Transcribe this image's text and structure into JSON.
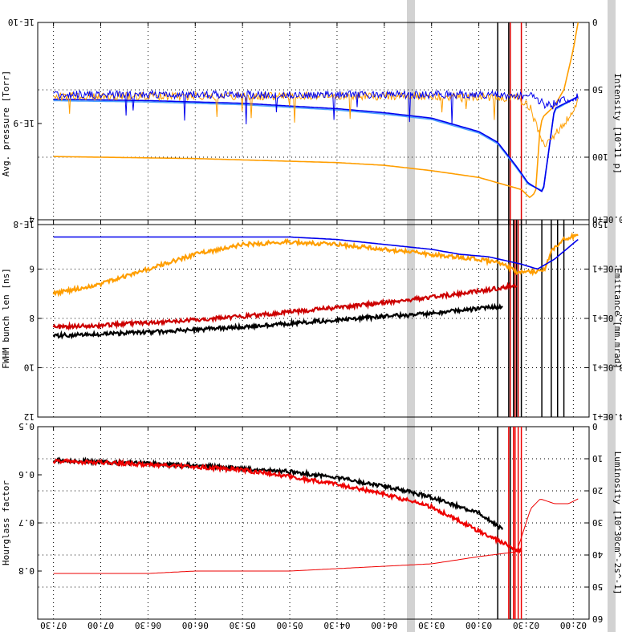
{
  "chart_data": [
    {
      "type": "line",
      "panel": "intensity",
      "ylabel": "Intensity [10^11 p]",
      "y2label": "Avg. pressure [Torr]",
      "ylim": [
        0,
        150
      ],
      "y_ticks": [
        "150",
        "100",
        "50",
        "0"
      ],
      "y2_ticks": [
        "1E-8",
        "1E-9",
        "1E-10"
      ],
      "y2_scale": "log",
      "grid": true,
      "markers": [
        {
          "x": "02:33",
          "color": "#dd0000"
        },
        {
          "x": "02:40",
          "color": "#dd0000"
        },
        {
          "x": "02:41",
          "color": "#000000"
        },
        {
          "x": "02:48",
          "color": "#000000"
        }
      ],
      "series": [
        {
          "color": "#ff9e00",
          "axis": "left",
          "values": [
            [
              1.95,
              0
            ],
            [
              2.0,
              20
            ],
            [
              2.1,
              50
            ],
            [
              2.2,
              62
            ],
            [
              2.32,
              70
            ],
            [
              2.35,
              76
            ],
            [
              2.4,
              126
            ],
            [
              2.46,
              130
            ],
            [
              2.55,
              124
            ],
            [
              2.8,
              119
            ],
            [
              3.0,
              115
            ],
            [
              3.5,
              110
            ],
            [
              4.0,
              106
            ],
            [
              4.5,
              104
            ],
            [
              5.0,
              103
            ],
            [
              5.5,
              102
            ],
            [
              6.0,
              101
            ],
            [
              6.5,
              100.5
            ],
            [
              7.0,
              100
            ],
            [
              7.5,
              99.5
            ]
          ]
        },
        {
          "color": "#4aa0ff",
          "axis": "left",
          "values": [
            [
              1.95,
              55
            ],
            [
              2.2,
              65
            ],
            [
              2.32,
              125
            ],
            [
              2.48,
              120
            ],
            [
              2.6,
              108
            ],
            [
              2.8,
              90
            ],
            [
              3.0,
              82
            ],
            [
              3.5,
              72
            ],
            [
              4.0,
              68
            ],
            [
              4.5,
              65
            ],
            [
              5.0,
              63
            ],
            [
              5.5,
              61
            ],
            [
              6.0,
              60
            ],
            [
              6.5,
              59
            ],
            [
              7.0,
              58.5
            ],
            [
              7.5,
              58
            ]
          ]
        },
        {
          "color": "#0000ee",
          "axis": "left",
          "values": [
            [
              1.95,
              55
            ],
            [
              2.2,
              64
            ],
            [
              2.32,
              126
            ],
            [
              2.48,
              119
            ],
            [
              2.6,
              107
            ],
            [
              2.8,
              89
            ],
            [
              3.0,
              81
            ],
            [
              3.5,
              71
            ],
            [
              4.0,
              67
            ],
            [
              4.5,
              64
            ],
            [
              5.0,
              62
            ],
            [
              5.5,
              60
            ],
            [
              6.0,
              59
            ],
            [
              6.5,
              58
            ],
            [
              7.0,
              57.5
            ],
            [
              7.5,
              57
            ]
          ]
        },
        {
          "color": "#ff9e00",
          "axis": "right",
          "style": "noisy",
          "values": [
            [
              1.95,
              6e-10
            ],
            [
              2.1,
              1e-09
            ],
            [
              2.3,
              1.6e-09
            ],
            [
              2.45,
              7e-10
            ],
            [
              2.6,
              5.6e-10
            ],
            [
              3.0,
              5.5e-10
            ],
            [
              4.0,
              5.4e-10
            ],
            [
              5.0,
              5.4e-10
            ],
            [
              6.0,
              5.4e-10
            ],
            [
              7.5,
              5.4e-10
            ]
          ]
        },
        {
          "color": "#0000ee",
          "axis": "right",
          "style": "noisy",
          "values": [
            [
              1.95,
              5.5e-10
            ],
            [
              2.3,
              6.5e-10
            ],
            [
              2.45,
              5.3e-10
            ],
            [
              3.0,
              5.2e-10
            ],
            [
              5.0,
              5.2e-10
            ],
            [
              7.5,
              5.2e-10
            ]
          ]
        }
      ]
    },
    {
      "type": "line",
      "panel": "emittance",
      "ylabel": "Emittance [mm.mrad]",
      "y2label": "FWHM bunch len [ns]",
      "ylim": [
        0,
        40
      ],
      "y_ticks": [
        "4.0E+1",
        "3.0E+1",
        "2.0E+1",
        "1.0E+1",
        "0.0E+0"
      ],
      "y2lim": [
        4,
        12
      ],
      "y2_ticks": [
        "12",
        "10",
        "8",
        "6",
        "4"
      ],
      "grid": true,
      "markers": [
        {
          "x": "02:06",
          "color": "#000000"
        },
        {
          "x": "02:10",
          "color": "#000000"
        },
        {
          "x": "02:14",
          "color": "#000000"
        },
        {
          "x": "02:20",
          "color": "#000000"
        },
        {
          "x": "02:33",
          "color": "#000000"
        },
        {
          "x": "02:35",
          "color": "#cc0000"
        },
        {
          "x": "02:36",
          "color": "#000000"
        },
        {
          "x": "02:37",
          "color": "#cc0000"
        },
        {
          "x": "02:38",
          "color": "#000000"
        },
        {
          "x": "02:40",
          "color": "#cc0000"
        },
        {
          "x": "02:41",
          "color": "#000000"
        },
        {
          "x": "02:48",
          "color": "#000000"
        }
      ],
      "series": [
        {
          "color": "#000000",
          "axis": "left",
          "style": "noisy",
          "values": [
            [
              2.75,
              17.5
            ],
            [
              3.0,
              18
            ],
            [
              3.5,
              19
            ],
            [
              4.0,
              19.6
            ],
            [
              4.5,
              20.3
            ],
            [
              5.0,
              21
            ],
            [
              5.5,
              21.7
            ],
            [
              6.0,
              22.3
            ],
            [
              6.5,
              22.8
            ],
            [
              7.0,
              23.2
            ],
            [
              7.5,
              23.5
            ]
          ]
        },
        {
          "color": "#cc0000",
          "axis": "left",
          "style": "noisy",
          "values": [
            [
              2.6,
              13.3
            ],
            [
              3.0,
              14.5
            ],
            [
              3.5,
              15.7
            ],
            [
              4.0,
              16.8
            ],
            [
              4.5,
              17.8
            ],
            [
              5.0,
              18.7
            ],
            [
              5.5,
              19.6
            ],
            [
              6.0,
              20.3
            ],
            [
              6.5,
              20.9
            ],
            [
              7.0,
              21.4
            ],
            [
              7.5,
              21.8
            ]
          ]
        },
        {
          "color": "#ff9e00",
          "axis": "left",
          "style": "noisy",
          "values": [
            [
              1.95,
              3
            ],
            [
              2.1,
              4
            ],
            [
              2.22,
              6
            ],
            [
              2.3,
              10
            ],
            [
              2.4,
              10.5
            ],
            [
              2.6,
              10.6
            ],
            [
              2.75,
              9
            ],
            [
              3.0,
              8
            ],
            [
              3.5,
              7
            ],
            [
              4.0,
              6
            ],
            [
              4.5,
              5
            ],
            [
              5.0,
              4.5
            ],
            [
              5.5,
              5
            ],
            [
              6.0,
              7
            ],
            [
              6.5,
              10
            ],
            [
              7.0,
              13
            ],
            [
              7.5,
              15
            ]
          ]
        },
        {
          "color": "#0000ee",
          "axis": "left",
          "values": [
            [
              1.95,
              4
            ],
            [
              2.2,
              8
            ],
            [
              2.38,
              10
            ],
            [
              2.55,
              9
            ],
            [
              2.9,
              7.5
            ],
            [
              3.2,
              7
            ],
            [
              3.5,
              6
            ],
            [
              4.0,
              5
            ],
            [
              4.5,
              4
            ],
            [
              5.0,
              3.5
            ],
            [
              5.5,
              3.5
            ],
            [
              6.0,
              3.5
            ],
            [
              6.5,
              3.5
            ],
            [
              7.0,
              3.5
            ],
            [
              7.5,
              3.5
            ]
          ]
        }
      ]
    },
    {
      "type": "line",
      "panel": "luminosity",
      "ylabel": "Luminosity [10^30cm^-2s^-1]",
      "y2label": "Hourglass factor",
      "ylim": [
        0,
        60
      ],
      "y_ticks": [
        "60",
        "50",
        "40",
        "30",
        "20",
        "10",
        "0"
      ],
      "y2lim": [
        0.5,
        0.9
      ],
      "y2_ticks": [
        "0.8",
        "0.7",
        "0.6",
        "0.5"
      ],
      "grid": true,
      "markers": [
        {
          "x": "02:33",
          "color": "#ee0000"
        },
        {
          "x": "02:35",
          "color": "#ee0000"
        },
        {
          "x": "02:37",
          "color": "#ee0000"
        },
        {
          "x": "02:38",
          "color": "#ee0000"
        },
        {
          "x": "02:40",
          "color": "#000000"
        },
        {
          "x": "02:41",
          "color": "#ee0000"
        },
        {
          "x": "02:48",
          "color": "#000000"
        }
      ],
      "series": [
        {
          "color": "#000000",
          "axis": "left",
          "style": "noisy",
          "values": [
            [
              2.75,
              32
            ],
            [
              3.0,
              27
            ],
            [
              3.5,
              22
            ],
            [
              4.0,
              18.5
            ],
            [
              4.5,
              16
            ],
            [
              5.0,
              14
            ],
            [
              5.5,
              13
            ],
            [
              6.0,
              12.2
            ],
            [
              6.5,
              11.5
            ],
            [
              7.0,
              11
            ],
            [
              7.5,
              10.5
            ]
          ]
        },
        {
          "color": "#ee0000",
          "axis": "left",
          "style": "noisy",
          "values": [
            [
              2.55,
              39
            ],
            [
              3.0,
              32.5
            ],
            [
              3.5,
              25
            ],
            [
              4.0,
              21
            ],
            [
              4.5,
              18
            ],
            [
              5.0,
              15.5
            ],
            [
              5.5,
              13.5
            ],
            [
              6.0,
              12.5
            ],
            [
              6.5,
              11.8
            ],
            [
              7.0,
              11.2
            ],
            [
              7.5,
              10.7
            ]
          ]
        },
        {
          "color": "#ee0000",
          "axis": "right",
          "style": "thin",
          "values": [
            [
              1.95,
              0.65
            ],
            [
              2.05,
              0.66
            ],
            [
              2.2,
              0.66
            ],
            [
              2.35,
              0.65
            ],
            [
              2.45,
              0.67
            ],
            [
              2.6,
              0.76
            ],
            [
              3.0,
              0.77
            ],
            [
              3.5,
              0.785
            ],
            [
              4.0,
              0.79
            ],
            [
              4.5,
              0.795
            ],
            [
              5.0,
              0.8
            ],
            [
              5.5,
              0.8
            ],
            [
              6.0,
              0.8
            ],
            [
              6.5,
              0.805
            ],
            [
              7.0,
              0.805
            ],
            [
              7.5,
              0.805
            ]
          ]
        }
      ]
    }
  ],
  "shared_x": {
    "ticks": [
      "02:00",
      "02:30",
      "03:00",
      "03:30",
      "04:00",
      "04:30",
      "05:00",
      "05:30",
      "06:00",
      "06:30",
      "07:00",
      "07:30"
    ],
    "range": [
      "01:50",
      "07:40"
    ]
  }
}
